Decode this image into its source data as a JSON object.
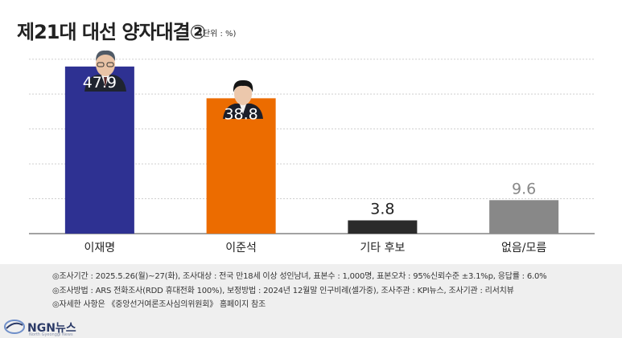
{
  "title": "제21대 대선 양자대결②",
  "unit": "(단위 : %)",
  "chart_data": {
    "type": "bar",
    "categories": [
      "이재명",
      "이준석",
      "기타 후보",
      "없음/모름"
    ],
    "values": [
      47.9,
      38.8,
      3.8,
      9.6
    ],
    "value_labels": [
      "47.9",
      "38.8",
      "3.8",
      "9.6"
    ],
    "colors": [
      "#2e3192",
      "#ec6c00",
      "#2b2b2b",
      "#888888"
    ],
    "ylim": [
      0,
      55
    ],
    "grid": true,
    "xlabel": "",
    "ylabel": ""
  },
  "notes": [
    "◎조사기간 : 2025.5.26(월)~27(화), 조사대상 : 전국 만18세 이상 성인남녀, 표본수 : 1,000명, 표본오차 : 95%신뢰수준 ±3.1%p, 응답률 : 6.0%",
    "◎조사방법 : ARS 전화조사(RDD 휴대전화 100%), 보정방법 : 2024년 12월말 인구비례(셀가중), 조사주관 : KPI뉴스, 조사기관 : 리서치뷰",
    "◎자세한 사항은 《중앙선거여론조사심의위원회》 홈페이지 참조"
  ],
  "logo": {
    "name": "NGN뉴스",
    "tagline": "North Gyeonggi News"
  }
}
